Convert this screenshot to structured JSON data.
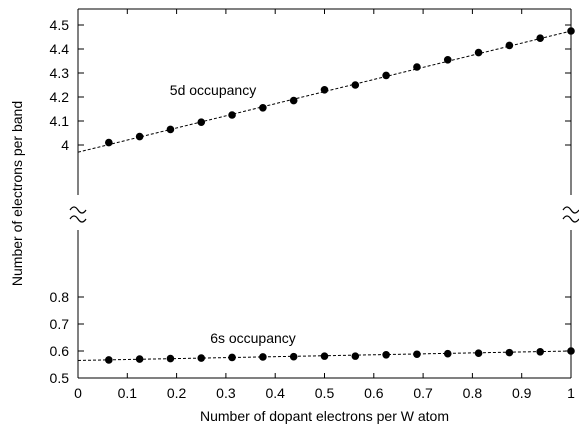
{
  "chart_data": {
    "type": "scatter",
    "xlabel": "Number of dopant electrons per W atom",
    "ylabel": "Number of electrons per band",
    "xlim": [
      0,
      1
    ],
    "xticks": [
      "0",
      "0.1",
      "0.2",
      "0.3",
      "0.4",
      "0.5",
      "0.6",
      "0.7",
      "0.8",
      "0.9",
      "1"
    ],
    "grid": false,
    "legend": "none",
    "axis_break": "broken y-axis between 0.8 and 4.0",
    "panels": [
      {
        "id": "upper",
        "ylim": [
          3.95,
          4.55
        ],
        "yticks": [
          "4",
          "4.1",
          "4.2",
          "4.3",
          "4.4",
          "4.5"
        ],
        "series": [
          {
            "annotation": "5d occupancy",
            "marker": "filled-circle",
            "fit_line": "dashed",
            "fit_endpoints": [
              [
                0,
                3.97
              ],
              [
                1,
                4.475
              ]
            ],
            "x": [
              0.0625,
              0.125,
              0.1875,
              0.25,
              0.3125,
              0.375,
              0.4375,
              0.5,
              0.5625,
              0.625,
              0.6875,
              0.75,
              0.8125,
              0.875,
              0.9375,
              1.0
            ],
            "y": [
              4.01,
              4.035,
              4.065,
              4.095,
              4.125,
              4.155,
              4.185,
              4.23,
              4.25,
              4.29,
              4.325,
              4.355,
              4.385,
              4.415,
              4.445,
              4.475
            ]
          }
        ]
      },
      {
        "id": "lower",
        "ylim": [
          0.5,
          0.95
        ],
        "yticks": [
          "0.5",
          "0.6",
          "0.7",
          "0.8"
        ],
        "series": [
          {
            "annotation": "6s occupancy",
            "marker": "filled-circle",
            "fit_line": "dashed",
            "fit_endpoints": [
              [
                0,
                0.565
              ],
              [
                1,
                0.6
              ]
            ],
            "x": [
              0.0625,
              0.125,
              0.1875,
              0.25,
              0.3125,
              0.375,
              0.4375,
              0.5,
              0.5625,
              0.625,
              0.6875,
              0.75,
              0.8125,
              0.875,
              0.9375,
              1.0
            ],
            "y": [
              0.567,
              0.57,
              0.572,
              0.574,
              0.576,
              0.578,
              0.579,
              0.581,
              0.581,
              0.586,
              0.588,
              0.59,
              0.592,
              0.594,
              0.597,
              0.6
            ]
          }
        ]
      }
    ]
  }
}
